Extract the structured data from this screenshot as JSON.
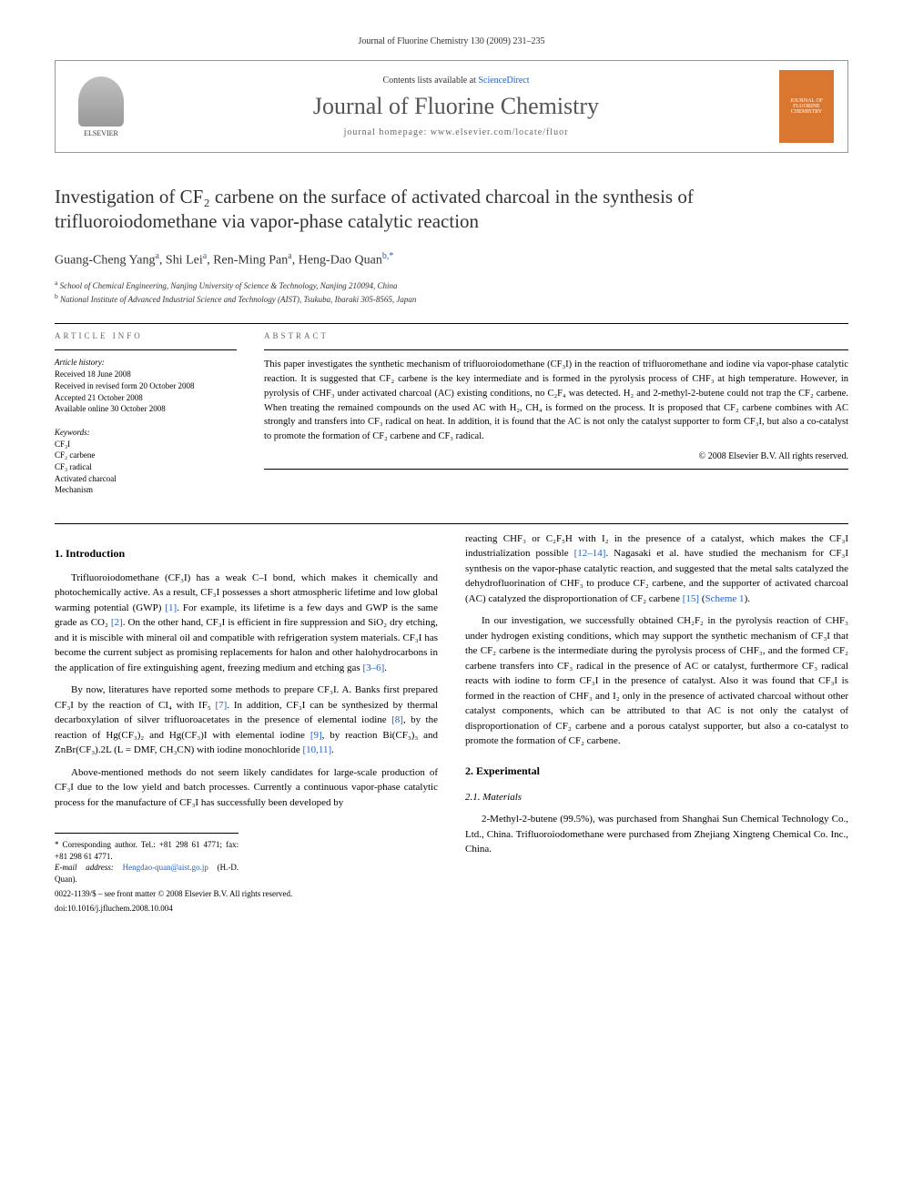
{
  "header": {
    "running_head": "Journal of Fluorine Chemistry 130 (2009) 231–235"
  },
  "banner": {
    "publisher_logo_label": "ELSEVIER",
    "contents_prefix": "Contents lists available at ",
    "contents_link": "ScienceDirect",
    "journal_name": "Journal of Fluorine Chemistry",
    "homepage_prefix": "journal homepage: ",
    "homepage_url": "www.elsevier.com/locate/fluor",
    "cover_text": "JOURNAL OF FLUORINE CHEMISTRY"
  },
  "article": {
    "title": "Investigation of CF₂ carbene on the surface of activated charcoal in the synthesis of trifluoroiodomethane via vapor-phase catalytic reaction",
    "authors_html": "Guang-Cheng Yang|a|, Shi Lei|a|, Ren-Ming Pan|a|, Heng-Dao Quan|b,*|",
    "affiliations": [
      {
        "sup": "a",
        "text": "School of Chemical Engineering, Nanjing University of Science & Technology, Nanjing 210094, China"
      },
      {
        "sup": "b",
        "text": "National Institute of Advanced Industrial Science and Technology (AIST), Tsukuba, Ibaraki 305-8565, Japan"
      }
    ]
  },
  "info": {
    "heading": "ARTICLE INFO",
    "history_heading": "Article history:",
    "history": [
      "Received 18 June 2008",
      "Received in revised form 20 October 2008",
      "Accepted 21 October 2008",
      "Available online 30 October 2008"
    ],
    "keywords_heading": "Keywords:",
    "keywords": [
      "CF₃I",
      "CF₂ carbene",
      "CF₃ radical",
      "Activated charcoal",
      "Mechanism"
    ]
  },
  "abstract": {
    "heading": "ABSTRACT",
    "text": "This paper investigates the synthetic mechanism of trifluoroiodomethane (CF₃I) in the reaction of trifluoromethane and iodine via vapor-phase catalytic reaction. It is suggested that CF₂ carbene is the key intermediate and is formed in the pyrolysis process of CHF₃ at high temperature. However, in pyrolysis of CHF₃ under activated charcoal (AC) existing conditions, no C₂F₄ was detected. H₂ and 2-methyl-2-butene could not trap the CF₂ carbene. When treating the remained compounds on the used AC with H₂, CH₄ is formed on the process. It is proposed that CF₂ carbene combines with AC strongly and transfers into CF₃ radical on heat. In addition, it is found that the AC is not only the catalyst supporter to form CF₃I, but also a co-catalyst to promote the formation of CF₂ carbene and CF₃ radical.",
    "copyright": "© 2008 Elsevier B.V. All rights reserved."
  },
  "body": {
    "sections": {
      "intro_heading": "1. Introduction",
      "intro_p1": "Trifluoroiodomethane (CF₃I) has a weak C–I bond, which makes it chemically and photochemically active. As a result, CF₃I possesses a short atmospheric lifetime and low global warming potential (GWP) [1]. For example, its lifetime is a few days and GWP is the same grade as CO₂ [2]. On the other hand, CF₃I is efficient in fire suppression and SiO₂ dry etching, and it is miscible with mineral oil and compatible with refrigeration system materials. CF₃I has become the current subject as promising replacements for halon and other halohydrocarbons in the application of fire extinguishing agent, freezing medium and etching gas [3–6].",
      "intro_p2": "By now, literatures have reported some methods to prepare CF₃I. A. Banks first prepared CF₃I by the reaction of CI₄ with IF₅ [7]. In addition, CF₃I can be synthesized by thermal decarboxylation of silver trifluoroacetates in the presence of elemental iodine [8], by the reaction of Hg(CF₃)₂ and Hg(CF₃)I with elemental iodine [9], by reaction Bi(CF₃)₃ and ZnBr(CF₃).2L (L = DMF, CH₃CN) with iodine monochloride [10,11].",
      "intro_p3": "Above-mentioned methods do not seem likely candidates for large-scale production of CF₃I due to the low yield and batch processes. Currently a continuous vapor-phase catalytic process for the manufacture of CF₃I has successfully been developed by",
      "intro_p3_cont": "reacting CHF₃ or C₂F₅H with I₂ in the presence of a catalyst, which makes the CF₃I industrialization possible [12–14]. Nagasaki et al. have studied the mechanism for CF₃I synthesis on the vapor-phase catalytic reaction, and suggested that the metal salts catalyzed the dehydrofluorination of CHF₃ to produce CF₂ carbene, and the supporter of activated charcoal (AC) catalyzed the disproportionation of CF₂ carbene [15] (Scheme 1).",
      "intro_p4": "In our investigation, we successfully obtained CH₂F₂ in the pyrolysis reaction of CHF₃ under hydrogen existing conditions, which may support the synthetic mechanism of CF₃I that the CF₂ carbene is the intermediate during the pyrolysis process of CHF₃, and the formed CF₂ carbene transfers into CF₃ radical in the presence of AC or catalyst, furthermore CF₃ radical reacts with iodine to form CF₃I in the presence of catalyst. Also it was found that CF₃I is formed in the reaction of CHF₃ and I₂ only in the presence of activated charcoal without other catalyst components, which can be attributed to that AC is not only the catalyst of disproportionation of CF₂ carbene and a porous catalyst supporter, but also a co-catalyst to promote the formation of CF₂ carbene.",
      "exp_heading": "2. Experimental",
      "materials_heading": "2.1. Materials",
      "materials_p1": "2-Methyl-2-butene (99.5%), was purchased from Shanghai Sun Chemical Technology Co., Ltd., China. Trifluoroiodomethane were purchased from Zhejiang Xingteng Chemical Co. Inc., China."
    }
  },
  "footer": {
    "corresponding": "* Corresponding author. Tel.: +81 298 61 4771; fax: +81 298 61 4771.",
    "email_label": "E-mail address:",
    "email": "Hengdao-quan@aist.go.jp",
    "email_suffix": "(H.-D. Quan).",
    "copyright_line": "0022-1139/$ – see front matter © 2008 Elsevier B.V. All rights reserved.",
    "doi": "doi:10.1016/j.jfluchem.2008.10.004"
  },
  "colors": {
    "link": "#2060c0",
    "text": "#000000",
    "heading_gray": "#666666",
    "cover_bg": "#d97730"
  }
}
